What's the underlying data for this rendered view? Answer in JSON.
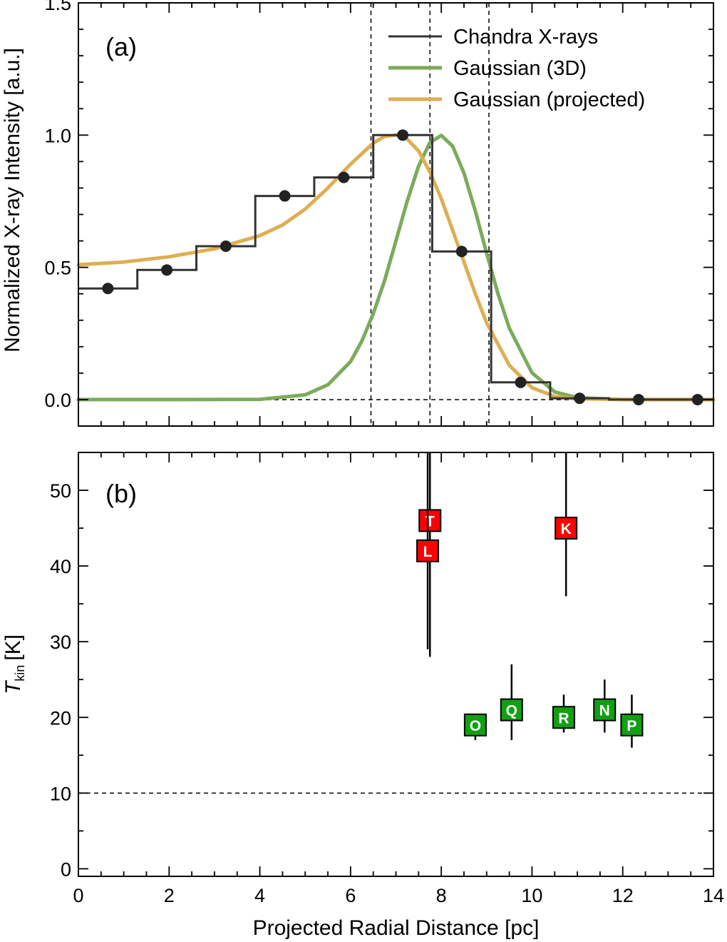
{
  "chart_data": [
    {
      "type": "line",
      "panel_label": "(a)",
      "ylabel": "Normalized X-ray Intensity [a.u.]",
      "xlim": [
        0,
        14
      ],
      "ylim": [
        -0.1,
        1.5
      ],
      "yticks": [
        {
          "value": 0.0,
          "label": "0.0"
        },
        {
          "value": 0.5,
          "label": "0.5"
        },
        {
          "value": 1.0,
          "label": "1.0"
        },
        {
          "value": 1.5,
          "label": "1.5"
        }
      ],
      "legend_position": "top-right",
      "legend": [
        {
          "name": "Chandra X-rays",
          "color": "#333333"
        },
        {
          "name": "Gaussian (3D)",
          "color": "#7bab5b"
        },
        {
          "name": "Gaussian (projected)",
          "color": "#dfae52"
        }
      ],
      "series": [
        {
          "name": "Chandra X-rays",
          "kind": "step",
          "color": "#333333",
          "bins": [
            {
              "x0": 0.0,
              "x1": 1.3,
              "y": 0.42
            },
            {
              "x0": 1.3,
              "x1": 2.6,
              "y": 0.49
            },
            {
              "x0": 2.6,
              "x1": 3.9,
              "y": 0.58
            },
            {
              "x0": 3.9,
              "x1": 5.2,
              "y": 0.77
            },
            {
              "x0": 5.2,
              "x1": 6.5,
              "y": 0.84
            },
            {
              "x0": 6.5,
              "x1": 7.8,
              "y": 1.0
            },
            {
              "x0": 7.8,
              "x1": 9.1,
              "y": 0.56
            },
            {
              "x0": 9.1,
              "x1": 10.4,
              "y": 0.065
            },
            {
              "x0": 10.4,
              "x1": 11.7,
              "y": 0.005
            },
            {
              "x0": 11.7,
              "x1": 13.0,
              "y": 0.0
            },
            {
              "x0": 13.0,
              "x1": 14.0,
              "y": 0.0
            }
          ],
          "points": [
            {
              "x": 0.65,
              "y": 0.42
            },
            {
              "x": 1.95,
              "y": 0.49
            },
            {
              "x": 3.25,
              "y": 0.58
            },
            {
              "x": 4.55,
              "y": 0.77
            },
            {
              "x": 5.85,
              "y": 0.84
            },
            {
              "x": 7.15,
              "y": 1.0
            },
            {
              "x": 8.45,
              "y": 0.56
            },
            {
              "x": 9.75,
              "y": 0.065
            },
            {
              "x": 11.05,
              "y": 0.005
            },
            {
              "x": 12.35,
              "y": 0.0
            },
            {
              "x": 13.65,
              "y": 0.0
            }
          ]
        },
        {
          "name": "Gaussian (3D)",
          "kind": "curve",
          "color": "#7bab5b",
          "x": [
            0,
            2,
            4,
            5,
            5.5,
            6,
            6.25,
            6.5,
            6.75,
            7,
            7.25,
            7.5,
            7.75,
            8,
            8.25,
            8.5,
            8.75,
            9,
            9.25,
            9.5,
            10,
            10.5,
            11,
            12,
            14
          ],
          "y": [
            0,
            0,
            0.001,
            0.018,
            0.056,
            0.144,
            0.222,
            0.325,
            0.45,
            0.6,
            0.751,
            0.883,
            0.972,
            0.999,
            0.958,
            0.856,
            0.713,
            0.553,
            0.4,
            0.27,
            0.101,
            0.029,
            0.007,
            0.0,
            0
          ]
        },
        {
          "name": "Gaussian (projected)",
          "kind": "curve",
          "color": "#dfae52",
          "x": [
            0,
            1,
            2,
            3,
            4,
            4.5,
            5,
            5.5,
            6,
            6.5,
            6.75,
            7,
            7.25,
            7.5,
            7.75,
            8,
            8.25,
            8.5,
            8.75,
            9,
            9.5,
            10,
            10.5,
            11,
            12,
            14
          ],
          "y": [
            0.51,
            0.52,
            0.54,
            0.57,
            0.62,
            0.66,
            0.72,
            0.8,
            0.89,
            0.97,
            0.995,
            1.0,
            0.985,
            0.94,
            0.86,
            0.76,
            0.64,
            0.52,
            0.4,
            0.29,
            0.13,
            0.045,
            0.012,
            0.003,
            0.0,
            0.0
          ]
        }
      ],
      "reference_lines": [
        {
          "orientation": "vertical",
          "x": 6.45
        },
        {
          "orientation": "vertical",
          "x": 7.75
        },
        {
          "orientation": "vertical",
          "x": 9.05
        },
        {
          "orientation": "horizontal",
          "y": 0.0
        }
      ]
    },
    {
      "type": "scatter",
      "panel_label": "(b)",
      "xlabel": "Projected Radial Distance [pc]",
      "ylabel_main": "T",
      "ylabel_sub": "kin",
      "ylabel_unit": "[K]",
      "xlim": [
        0,
        14
      ],
      "ylim": [
        -1,
        55
      ],
      "xticks": [
        {
          "value": 0,
          "label": "0"
        },
        {
          "value": 2,
          "label": "2"
        },
        {
          "value": 4,
          "label": "4"
        },
        {
          "value": 6,
          "label": "6"
        },
        {
          "value": 8,
          "label": "8"
        },
        {
          "value": 10,
          "label": "10"
        },
        {
          "value": 12,
          "label": "12"
        },
        {
          "value": 14,
          "label": "14"
        }
      ],
      "yticks": [
        {
          "value": 0,
          "label": "0"
        },
        {
          "value": 10,
          "label": "10"
        },
        {
          "value": 20,
          "label": "20"
        },
        {
          "value": 30,
          "label": "30"
        },
        {
          "value": 40,
          "label": "40"
        },
        {
          "value": 50,
          "label": "50"
        }
      ],
      "points": [
        {
          "label": "T",
          "x": 7.75,
          "y": 46,
          "ylow": 28,
          "yhigh": 55,
          "color": "#ff0000"
        },
        {
          "label": "L",
          "x": 7.7,
          "y": 42,
          "ylow": 29,
          "yhigh": 55,
          "color": "#ff0000"
        },
        {
          "label": "K",
          "x": 10.75,
          "y": 45,
          "ylow": 36,
          "yhigh": 55,
          "color": "#ff0000"
        },
        {
          "label": "O",
          "x": 8.75,
          "y": 19,
          "ylow": 17,
          "yhigh": 19,
          "color": "#11a011"
        },
        {
          "label": "Q",
          "x": 9.55,
          "y": 21,
          "ylow": 17,
          "yhigh": 27,
          "color": "#11a011"
        },
        {
          "label": "R",
          "x": 10.7,
          "y": 20,
          "ylow": 18,
          "yhigh": 23,
          "color": "#11a011"
        },
        {
          "label": "N",
          "x": 11.6,
          "y": 21,
          "ylow": 18,
          "yhigh": 25,
          "color": "#11a011"
        },
        {
          "label": "P",
          "x": 12.2,
          "y": 19,
          "ylow": 16,
          "yhigh": 23,
          "color": "#11a011"
        }
      ],
      "reference_lines": [
        {
          "orientation": "horizontal",
          "y": 10
        }
      ]
    }
  ]
}
